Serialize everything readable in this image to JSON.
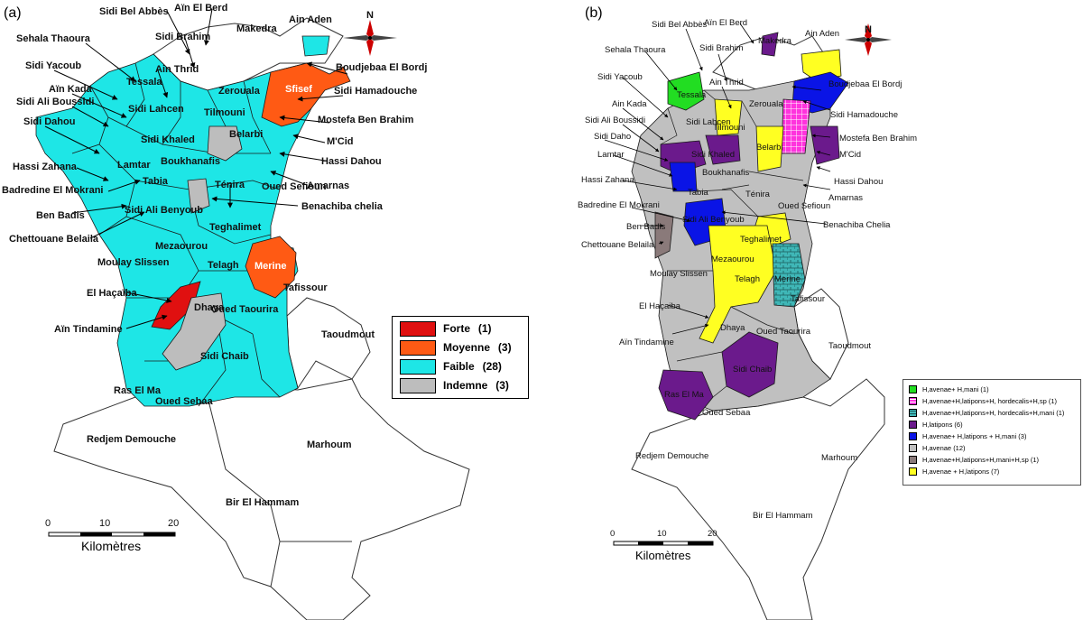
{
  "panel_a": {
    "tag": "(a)",
    "labels": {
      "ain_el_berd": "Aïn El Berd",
      "sidi_bel_abbes": "Sidi Bel Abbès",
      "makedra": "Makedra",
      "ain_aden": "Ain Aden",
      "sehala_thaoura": "Sehala Thaoura",
      "sidi_brahim": "Sidi Brahim",
      "boudjebaa": "Boudjebaa El Bordj",
      "sidi_yacoub": "Sidi Yacoub",
      "ain_thrid": "Ain Thrid",
      "tessala": "Tessala",
      "sfisef": "Sfisef",
      "sidi_hamadouche": "Sidi Hamadouche",
      "ain_kada": "Aïn Kada",
      "zerouala": "Zerouala",
      "sidi_ali_boussidi": "Sidi Ali Boussidi",
      "sidi_lahcen": "Sidi Lahcen",
      "mostefa": "Mostefa Ben Brahim",
      "tilmouni": "Tilmouni",
      "sidi_dahou": "Sidi Dahou",
      "sidi_khaled": "Sidi Khaled",
      "mcid": "M'Cid",
      "belarbi": "Belarbi",
      "hassi_zahana": "Hassi Zahana",
      "lamtar": "Lamtar",
      "boukhanafis": "Boukhanafis",
      "hassi_dahou": "Hassi Dahou",
      "badredine": "Badredine El Mokrani",
      "tabia": "Tabia",
      "tenira": "Ténira",
      "oued_sefioun": "Oued Sefioun",
      "amarnas": "Amarnas",
      "ben_badis": "Ben Badis",
      "sidi_ali_benyoub": "Sidi Ali Benyoub",
      "benachiba": "Benachiba chelia",
      "chettouane": "Chettouane Belaila",
      "teghalimet": "Teghalimet",
      "mezaourou": "Mezaourou",
      "merine": "Merine",
      "moulay_slissen": "Moulay Slissen",
      "telagh": "Telagh",
      "tafissour": "Tafissour",
      "el_hacaiba": "El Haçaïba",
      "dhaya": "Dhaya",
      "oued_taourira": "Oued Taourira",
      "ain_tindamine": "Aïn Tindamine",
      "taoudmout": "Taoudmout",
      "sidi_chaib": "Sidi Chaib",
      "ras_el_ma": "Ras El Ma",
      "oued_sebaa": "Oued Sebaa",
      "redjem": "Redjem Demouche",
      "marhoum": "Marhoum",
      "bir_el_hammam": "Bir El Hammam"
    },
    "legend": [
      {
        "label": "Forte",
        "count": "(1)",
        "color": "#e01010"
      },
      {
        "label": "Moyenne",
        "count": "(3)",
        "color": "#ff5a14"
      },
      {
        "label": "Faible",
        "count": "(28)",
        "color": "#1ee6e6"
      },
      {
        "label": "Indemne",
        "count": "(3)",
        "color": "#bdbdbd"
      }
    ],
    "scale": {
      "ticks": [
        "0",
        "10",
        "20"
      ],
      "unit": "Kilomètres"
    },
    "compass": "N"
  },
  "panel_b": {
    "tag": "(b)",
    "labels": {
      "sidi_bel_abbes": "Sidi Bel Abbès",
      "ain_el_berd": "Aïn El Berd",
      "ain_aden": "Ain Aden",
      "makedra": "Makedra",
      "sehala_thaoura": "Sehala Thaoura",
      "sidi_brahim": "Sidi Brahim",
      "boudjebaa": "Boudjebaa El Bordj",
      "sidi_yacoub": "Sidi Yacoub",
      "ain_thrid": "Ain Thrid",
      "tessala": "Tessala",
      "sidi_hamadouche": "Sidi Hamadouche",
      "ain_kada": "Ain Kada",
      "zerouala": "Zerouala",
      "sidi_ali_boussidi": "Sidi Ali Boussidi",
      "sidi_lahcen": "Sidi Lahcen",
      "mostefa": "Mostefa Ben Brahim",
      "tilmouni": "Tilmouni",
      "sidi_daho": "Sidi Daho",
      "sidi_khaled": "Sidi Khaled",
      "mcid": "M'Cid",
      "belarbi": "Belarbi",
      "lamtar": "Lamtar",
      "boukhanafis": "Boukhanafis",
      "hassi_dahou": "Hassi Dahou",
      "hassi_zahana": "Hassi Zahana",
      "tabia": "Tabia",
      "tenira": "Ténira",
      "amarnas": "Amarnas",
      "badredine": "Badredine El Mokrani",
      "oued_sefioun": "Oued Sefioun",
      "sidi_ali_benyoub": "Sidi Ali Benyoub",
      "benachiba": "Benachiba Chelia",
      "ben_badis": "Ben Badis",
      "teghalimet": "Teghalimet",
      "chettouane": "Chettouane Belaila",
      "mezaourou": "Mezaourou",
      "moulay_slissen": "Moulay Slissen",
      "telagh": "Telagh",
      "merine": "Merine",
      "tafissour": "Tafissour",
      "el_hacaiba": "El Haçaiba",
      "dhaya": "Dhaya",
      "ain_tindamine": "Aïn Tindamine",
      "oued_taourira": "Oued Taourira",
      "taoudmout": "Taoudmout",
      "sidi_chaib": "Sidi Chaib",
      "ras_el_ma": "Ras El Ma",
      "oued_sebaa": "Oued Sebaa",
      "redjem": "Redjem Demouche",
      "marhoum": "Marhoum",
      "bir_el_hammam": "Bir El Hammam"
    },
    "legend": [
      {
        "label": "H,avenae+ H,mani  (1)",
        "color": "#22dd22",
        "pattern": "none"
      },
      {
        "label": "H,avenae+H,latipons+H, hordecalis+H,sp  (1)",
        "color": "#ff33dd",
        "pattern": "grid"
      },
      {
        "label": "H,avenae+H,latipons+H, hordecalis+H,mani  (1)",
        "color": "#3fb7b7",
        "pattern": "brick"
      },
      {
        "label": "H,latipons  (6)",
        "color": "#6b1a8c",
        "pattern": "none"
      },
      {
        "label": "H,avenae+ H,latipons + H,mani  (3)",
        "color": "#0a14e6",
        "pattern": "none"
      },
      {
        "label": "H,avenae  (12)",
        "color": "#c0c0c0",
        "pattern": "none"
      },
      {
        "label": "H,avenae+H,latipons+H,mani+H,sp  (1)",
        "color": "#8a7a7a",
        "pattern": "none"
      },
      {
        "label": "H,avenae + H,latipons  (7)",
        "color": "#ffff22",
        "pattern": "none"
      }
    ],
    "scale": {
      "ticks": [
        "0",
        "10",
        "20"
      ],
      "unit": "Kilomètres"
    },
    "compass": "N"
  }
}
